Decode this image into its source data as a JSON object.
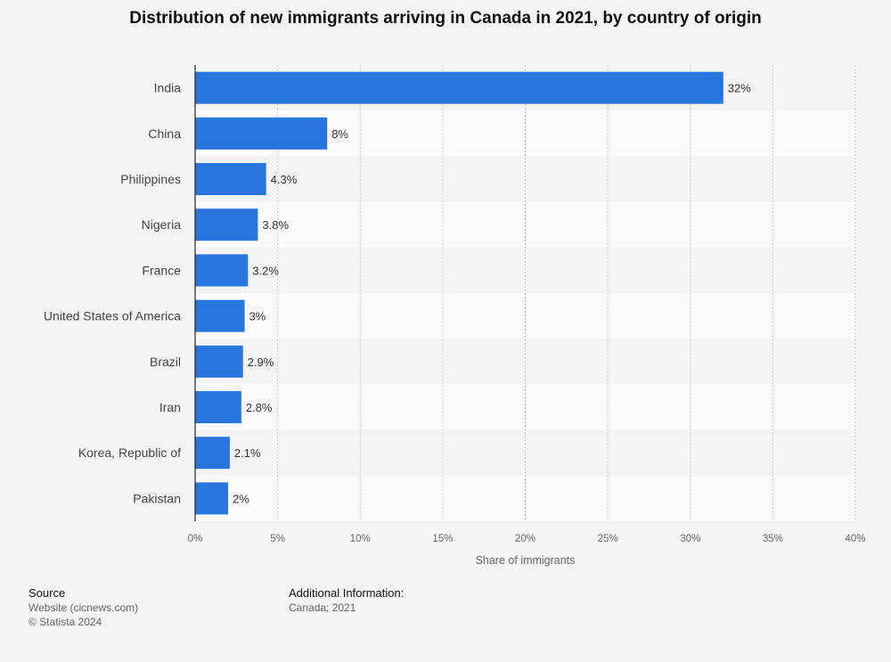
{
  "chart_data": {
    "type": "bar",
    "orientation": "horizontal",
    "title": "Distribution of new immigrants arriving in Canada in 2021, by country of origin",
    "categories": [
      "India",
      "China",
      "Philippines",
      "Nigeria",
      "France",
      "United States of America",
      "Brazil",
      "Iran",
      "Korea, Republic of",
      "Pakistan"
    ],
    "values": [
      32,
      8,
      4.3,
      3.8,
      3.2,
      3,
      2.9,
      2.8,
      2.1,
      2
    ],
    "value_labels": [
      "32%",
      "8%",
      "4.3%",
      "3.8%",
      "3.2%",
      "3%",
      "2.9%",
      "2.8%",
      "2.1%",
      "2%"
    ],
    "xlabel": "Share of immigrants",
    "ylabel": "",
    "xlim": [
      0,
      40
    ],
    "ticks": [
      0,
      5,
      10,
      15,
      20,
      25,
      30,
      35,
      40
    ],
    "tick_labels": [
      "0%",
      "5%",
      "10%",
      "15%",
      "20%",
      "25%",
      "30%",
      "35%",
      "40%"
    ],
    "grid": true,
    "bar_color": "#2876dd"
  },
  "footer": {
    "source_heading": "Source",
    "source_line1": "Website (cicnews.com)",
    "source_line2": "© Statista 2024",
    "info_heading": "Additional Information:",
    "info_line1": "Canada; 2021"
  }
}
